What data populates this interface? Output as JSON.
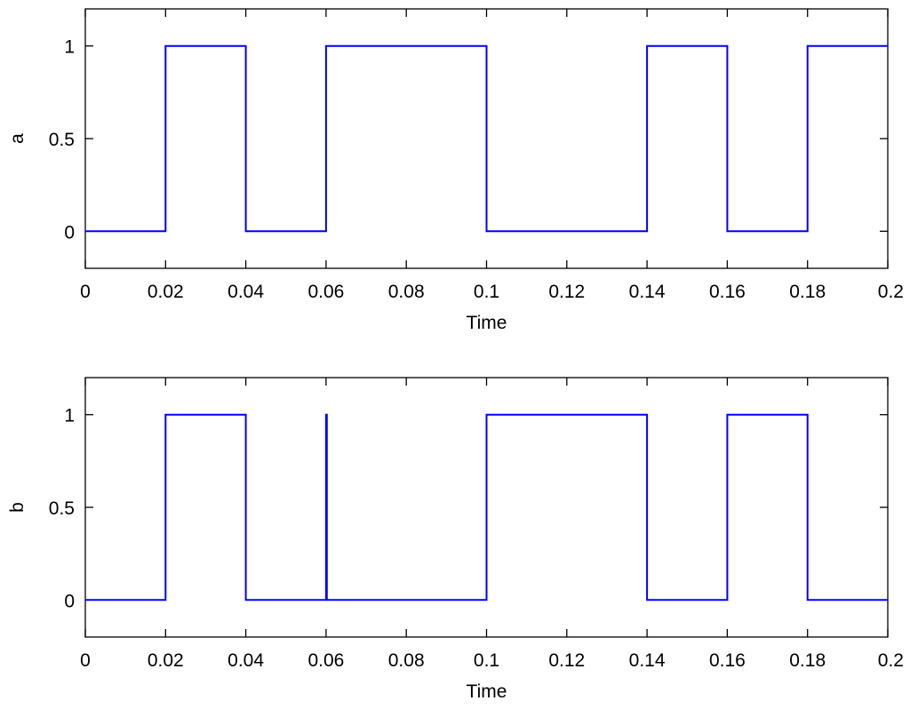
{
  "colors": {
    "line": "#0000ff",
    "axes": "#000000",
    "background": "#ffffff"
  },
  "chart_data": [
    {
      "type": "line",
      "name": "a",
      "xlabel": "Time",
      "ylabel": "a",
      "xlim": [
        0,
        0.2
      ],
      "ylim": [
        -0.2,
        1.2
      ],
      "xticks": [
        0,
        0.02,
        0.04,
        0.06,
        0.08,
        0.1,
        0.12,
        0.14,
        0.16,
        0.18,
        0.2
      ],
      "xtick_labels": [
        "0",
        "0.02",
        "0.04",
        "0.06",
        "0.08",
        "0.1",
        "0.12",
        "0.14",
        "0.16",
        "0.18",
        "0.2"
      ],
      "yticks": [
        0,
        0.5,
        1
      ],
      "ytick_labels": [
        "0",
        "0.5",
        "1"
      ],
      "grid": false,
      "series": [
        {
          "color": "#0000ff",
          "x": [
            0,
            0.02,
            0.02,
            0.04,
            0.04,
            0.06,
            0.06,
            0.1,
            0.1,
            0.14,
            0.14,
            0.16,
            0.16,
            0.18,
            0.18,
            0.2
          ],
          "y": [
            0,
            0,
            1,
            1,
            0,
            0,
            1,
            1,
            0,
            0,
            1,
            1,
            0,
            0,
            1,
            1
          ]
        }
      ]
    },
    {
      "type": "line",
      "name": "b",
      "xlabel": "Time",
      "ylabel": "b",
      "xlim": [
        0,
        0.2
      ],
      "ylim": [
        -0.2,
        1.2
      ],
      "xticks": [
        0,
        0.02,
        0.04,
        0.06,
        0.08,
        0.1,
        0.12,
        0.14,
        0.16,
        0.18,
        0.2
      ],
      "xtick_labels": [
        "0",
        "0.02",
        "0.04",
        "0.06",
        "0.08",
        "0.1",
        "0.12",
        "0.14",
        "0.16",
        "0.18",
        "0.2"
      ],
      "yticks": [
        0,
        0.5,
        1
      ],
      "ytick_labels": [
        "0",
        "0.5",
        "1"
      ],
      "grid": false,
      "series": [
        {
          "color": "#0000ff",
          "x": [
            0,
            0.02,
            0.02,
            0.04,
            0.04,
            0.06,
            0.06,
            0.0602,
            0.0602,
            0.1,
            0.1,
            0.14,
            0.14,
            0.16,
            0.16,
            0.18,
            0.18,
            0.2
          ],
          "y": [
            0,
            0,
            1,
            1,
            0,
            0,
            1,
            1,
            0,
            0,
            1,
            1,
            0,
            0,
            1,
            1,
            0,
            0
          ]
        }
      ]
    }
  ]
}
